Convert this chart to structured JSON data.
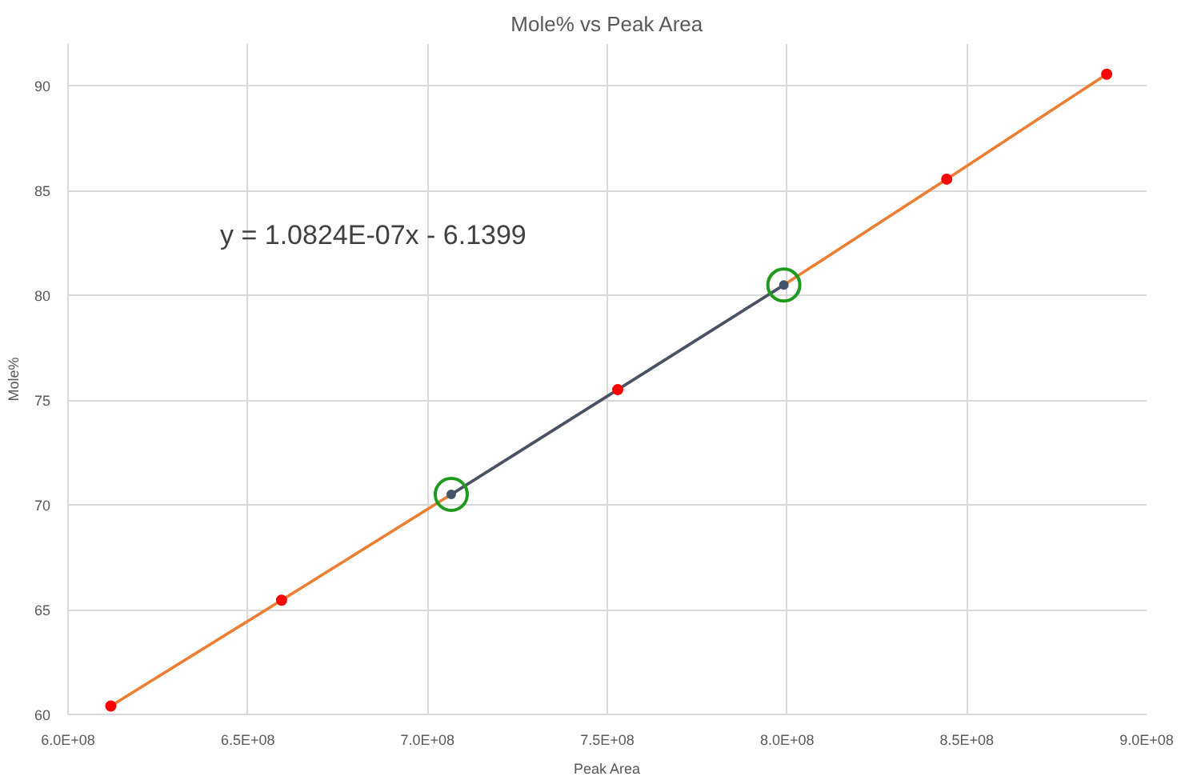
{
  "chart_data": {
    "type": "scatter",
    "title": "Mole% vs Peak Area",
    "xlabel": "Peak Area",
    "ylabel": "Mole%",
    "annotations": [
      "y = 1.0824E-07x - 6.1399"
    ],
    "series": [
      {
        "type": "line",
        "color": "#ed7d31",
        "marker": "none",
        "x": [
          611900000,
          659400000,
          706600000,
          752900000,
          799100000,
          844400000,
          888900000
        ],
        "values": [
          60.4,
          65.45,
          70.5,
          75.5,
          80.5,
          85.55,
          90.56
        ]
      },
      {
        "type": "line",
        "color": "#44546a",
        "marker": "circle",
        "x": [
          706600000,
          799100000
        ],
        "values": [
          70.5,
          80.5
        ]
      },
      {
        "color": "#ff0000",
        "marker": "circle",
        "x": [
          611900000,
          659400000,
          752900000,
          844400000,
          888900000
        ],
        "values": [
          60.4,
          65.45,
          75.5,
          85.55,
          90.56
        ]
      },
      {
        "type": "scatter",
        "color": "#1e9a1e",
        "x": [
          706600000,
          799100000
        ],
        "values": [
          70.5,
          80.5
        ]
      }
    ],
    "xlim": [
      600000000,
      900000000
    ],
    "ylim": [
      60,
      92
    ],
    "xticks": [
      {
        "value": 600000000,
        "label": "6.0E+08"
      },
      {
        "value": 650000000,
        "label": "6.5E+08"
      },
      {
        "value": 700000000,
        "label": "7.0E+08"
      },
      {
        "value": 750000000,
        "label": "7.5E+08"
      },
      {
        "value": 800000000,
        "label": "8.0E+08"
      },
      {
        "value": 850000000,
        "label": "8.5E+08"
      },
      {
        "value": 900000000,
        "label": "9.0E+08"
      }
    ],
    "yticks": [
      60,
      65,
      70,
      75,
      80,
      85,
      90
    ],
    "grid": true
  }
}
